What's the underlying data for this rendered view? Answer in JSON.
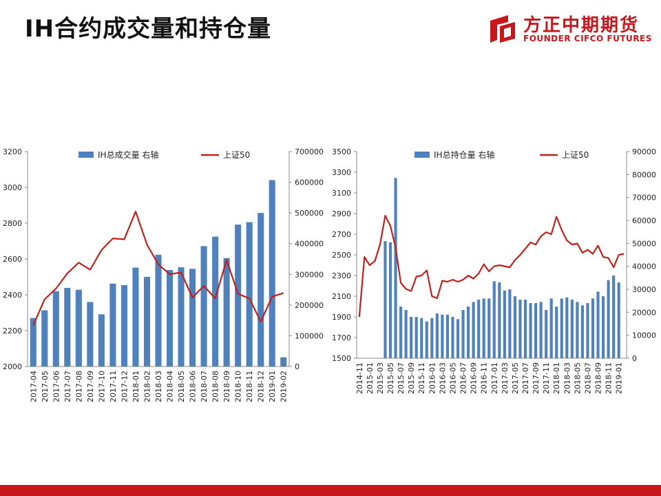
{
  "header": {
    "title": "IH合约成交量和持仓量",
    "logo_name": "方正中期期货",
    "logo_en": "FOUNDER CIFCO FUTURES"
  },
  "colors": {
    "bar": "#4f81bd",
    "line": "#c0211d",
    "brand": "#c8161d"
  },
  "chart_data": [
    {
      "type": "bar",
      "legend": {
        "bar": "IH总成交量 右轴",
        "line": "上证50"
      },
      "categories": [
        "2017-04",
        "2017-05",
        "2017-06",
        "2017-07",
        "2017-08",
        "2017-09",
        "2017-10",
        "2017-11",
        "2017-12",
        "2018-01",
        "2018-02",
        "2018-03",
        "2018-04",
        "2018-05",
        "2018-06",
        "2018-07",
        "2018-08",
        "2018-09",
        "2018-10",
        "2018-11",
        "2018-12",
        "2019-01",
        "2019-02"
      ],
      "bar_values": [
        158000,
        183000,
        245000,
        256000,
        250000,
        210000,
        170000,
        270000,
        265000,
        322000,
        292000,
        364000,
        314000,
        323000,
        318000,
        392000,
        423000,
        353000,
        462000,
        470000,
        500000,
        607000,
        30000
      ],
      "line_values": [
        2230,
        2375,
        2435,
        2520,
        2580,
        2540,
        2650,
        2715,
        2710,
        2865,
        2680,
        2570,
        2515,
        2525,
        2385,
        2450,
        2380,
        2595,
        2405,
        2380,
        2250,
        2390,
        2410
      ],
      "left_axis": {
        "min": 2000,
        "max": 3200,
        "ticks": [
          "2000",
          "2200",
          "2400",
          "2600",
          "2800",
          "3000",
          "3200"
        ]
      },
      "right_axis": {
        "min": 0,
        "max": 700000,
        "ticks": [
          "0",
          "100000",
          "200000",
          "300000",
          "400000",
          "500000",
          "600000",
          "700000"
        ]
      }
    },
    {
      "type": "bar",
      "legend": {
        "bar": "IH总持仓量 右轴",
        "line": "上证50"
      },
      "categories": [
        "2014-11",
        "2014-12",
        "2015-01",
        "2015-02",
        "2015-03",
        "2015-04",
        "2015-05",
        "2015-06",
        "2015-07",
        "2015-08",
        "2015-09",
        "2015-10",
        "2015-11",
        "2015-12",
        "2016-01",
        "2016-02",
        "2016-03",
        "2016-04",
        "2016-05",
        "2016-06",
        "2016-07",
        "2016-08",
        "2016-09",
        "2016-10",
        "2016-11",
        "2016-12",
        "2017-01",
        "2017-02",
        "2017-03",
        "2017-04",
        "2017-05",
        "2017-06",
        "2017-07",
        "2017-08",
        "2017-09",
        "2017-10",
        "2017-11",
        "2017-12",
        "2018-01",
        "2018-02",
        "2018-03",
        "2018-04",
        "2018-05",
        "2018-06",
        "2018-07",
        "2018-08",
        "2018-09",
        "2018-10",
        "2018-11",
        "2018-12",
        "2019-01",
        "2019-02"
      ],
      "axis_labels": [
        "2014-11",
        "2015-01",
        "2015-03",
        "2015-05",
        "2015-07",
        "2015-09",
        "2015-11",
        "2016-01",
        "2016-03",
        "2016-05",
        "2016-07",
        "2016-09",
        "2016-11",
        "2017-01",
        "2017-03",
        "2017-05",
        "2017-07",
        "2017-09",
        "2017-11",
        "2018-01",
        "2018-03",
        "2018-05",
        "2018-07",
        "2018-09",
        "2018-11",
        "2019-01"
      ],
      "bar_values": [
        0,
        0,
        0,
        0,
        0,
        51000,
        50500,
        78500,
        22500,
        21000,
        18000,
        18000,
        17500,
        16000,
        17500,
        19500,
        19000,
        19000,
        18000,
        17000,
        21000,
        22500,
        24500,
        25500,
        26000,
        26000,
        33500,
        33000,
        29500,
        30000,
        27000,
        25500,
        25500,
        24000,
        24000,
        24500,
        21000,
        26000,
        22500,
        26000,
        26500,
        25500,
        24500,
        23000,
        24000,
        26000,
        29000,
        27000,
        34000,
        36000,
        33000,
        0
      ],
      "line_values": [
        1900,
        2480,
        2400,
        2440,
        2600,
        2880,
        2780,
        2570,
        2230,
        2170,
        2150,
        2290,
        2300,
        2350,
        2100,
        2080,
        2250,
        2240,
        2260,
        2240,
        2260,
        2300,
        2270,
        2320,
        2410,
        2340,
        2390,
        2400,
        2390,
        2380,
        2450,
        2500,
        2560,
        2620,
        2600,
        2680,
        2720,
        2700,
        2870,
        2740,
        2640,
        2600,
        2610,
        2520,
        2550,
        2510,
        2590,
        2480,
        2470,
        2380,
        2500,
        2510
      ],
      "left_axis": {
        "min": 1500,
        "max": 3500,
        "ticks": [
          "1500",
          "1700",
          "1900",
          "2100",
          "2300",
          "2500",
          "2700",
          "2900",
          "3100",
          "3300",
          "3500"
        ]
      },
      "right_axis": {
        "min": 0,
        "max": 90000,
        "ticks": [
          "0",
          "10000",
          "20000",
          "30000",
          "40000",
          "50000",
          "60000",
          "70000",
          "80000",
          "90000"
        ]
      }
    }
  ]
}
